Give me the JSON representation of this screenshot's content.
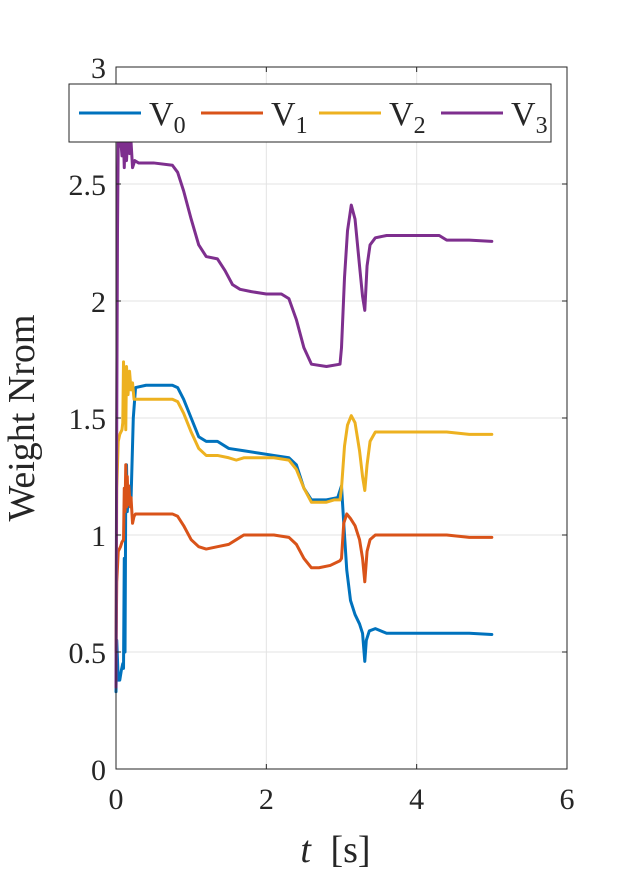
{
  "chart_data": {
    "type": "line",
    "title": "",
    "xlabel_var": "t",
    "xlabel_unit": "[s]",
    "ylabel": "Weight Nrom",
    "xlim": [
      0,
      6
    ],
    "ylim": [
      0,
      3
    ],
    "xticks": [
      0,
      2,
      4,
      6
    ],
    "xtick_labels": [
      "0",
      "2",
      "4",
      "6"
    ],
    "yticks": [
      0,
      0.5,
      1,
      1.5,
      2,
      2.5,
      3
    ],
    "ytick_labels": [
      "0",
      "0.5",
      "1",
      "1.5",
      "2",
      "2.5",
      "3"
    ],
    "grid": true,
    "legend_position": "top",
    "series": [
      {
        "name": "V",
        "sub": "0",
        "color": "#0072BD",
        "points": [
          [
            0,
            0.33
          ],
          [
            0.01,
            0.55
          ],
          [
            0.03,
            0.38
          ],
          [
            0.05,
            0.38
          ],
          [
            0.07,
            0.42
          ],
          [
            0.09,
            0.45
          ],
          [
            0.1,
            0.43
          ],
          [
            0.11,
            0.9
          ],
          [
            0.12,
            0.5
          ],
          [
            0.13,
            1.2
          ],
          [
            0.14,
            1.3
          ],
          [
            0.15,
            1.1
          ],
          [
            0.17,
            1.2
          ],
          [
            0.2,
            1.15
          ],
          [
            0.23,
            1.5
          ],
          [
            0.26,
            1.63
          ],
          [
            0.4,
            1.64
          ],
          [
            0.6,
            1.64
          ],
          [
            0.75,
            1.64
          ],
          [
            0.82,
            1.63
          ],
          [
            0.9,
            1.58
          ],
          [
            1.0,
            1.5
          ],
          [
            1.1,
            1.42
          ],
          [
            1.2,
            1.4
          ],
          [
            1.35,
            1.4
          ],
          [
            1.5,
            1.37
          ],
          [
            1.7,
            1.36
          ],
          [
            1.9,
            1.35
          ],
          [
            2.1,
            1.34
          ],
          [
            2.3,
            1.33
          ],
          [
            2.4,
            1.3
          ],
          [
            2.5,
            1.2
          ],
          [
            2.6,
            1.15
          ],
          [
            2.8,
            1.15
          ],
          [
            2.95,
            1.16
          ],
          [
            3.0,
            1.21
          ],
          [
            3.03,
            1.05
          ],
          [
            3.07,
            0.85
          ],
          [
            3.12,
            0.72
          ],
          [
            3.18,
            0.66
          ],
          [
            3.24,
            0.62
          ],
          [
            3.28,
            0.58
          ],
          [
            3.31,
            0.46
          ],
          [
            3.33,
            0.55
          ],
          [
            3.37,
            0.59
          ],
          [
            3.45,
            0.6
          ],
          [
            3.6,
            0.58
          ],
          [
            4.0,
            0.58
          ],
          [
            4.4,
            0.58
          ],
          [
            4.7,
            0.58
          ],
          [
            5.0,
            0.575
          ]
        ]
      },
      {
        "name": "V",
        "sub": "1",
        "color": "#D95319",
        "points": [
          [
            0,
            0.5
          ],
          [
            0.01,
            0.8
          ],
          [
            0.03,
            0.93
          ],
          [
            0.06,
            0.95
          ],
          [
            0.08,
            0.97
          ],
          [
            0.1,
            0.98
          ],
          [
            0.11,
            1.2
          ],
          [
            0.12,
            1.1
          ],
          [
            0.13,
            1.3
          ],
          [
            0.14,
            1.12
          ],
          [
            0.15,
            1.25
          ],
          [
            0.16,
            1.13
          ],
          [
            0.17,
            1.21
          ],
          [
            0.19,
            1.12
          ],
          [
            0.2,
            1.16
          ],
          [
            0.22,
            1.05
          ],
          [
            0.24,
            1.08
          ],
          [
            0.26,
            1.09
          ],
          [
            0.4,
            1.09
          ],
          [
            0.6,
            1.09
          ],
          [
            0.75,
            1.09
          ],
          [
            0.82,
            1.08
          ],
          [
            0.9,
            1.04
          ],
          [
            1.0,
            0.98
          ],
          [
            1.1,
            0.95
          ],
          [
            1.2,
            0.94
          ],
          [
            1.35,
            0.95
          ],
          [
            1.5,
            0.96
          ],
          [
            1.6,
            0.98
          ],
          [
            1.7,
            1.0
          ],
          [
            1.85,
            1.0
          ],
          [
            2.1,
            1.0
          ],
          [
            2.3,
            0.99
          ],
          [
            2.4,
            0.96
          ],
          [
            2.5,
            0.9
          ],
          [
            2.6,
            0.86
          ],
          [
            2.7,
            0.86
          ],
          [
            2.85,
            0.87
          ],
          [
            2.98,
            0.89
          ],
          [
            3.0,
            0.9
          ],
          [
            3.03,
            1.05
          ],
          [
            3.07,
            1.09
          ],
          [
            3.12,
            1.07
          ],
          [
            3.18,
            1.04
          ],
          [
            3.24,
            0.98
          ],
          [
            3.28,
            0.9
          ],
          [
            3.31,
            0.8
          ],
          [
            3.34,
            0.93
          ],
          [
            3.38,
            0.98
          ],
          [
            3.45,
            1.0
          ],
          [
            3.6,
            1.0
          ],
          [
            4.0,
            1.0
          ],
          [
            4.4,
            1.0
          ],
          [
            4.7,
            0.99
          ],
          [
            5.0,
            0.99
          ]
        ]
      },
      {
        "name": "V",
        "sub": "2",
        "color": "#EDB120",
        "points": [
          [
            0,
            0.5
          ],
          [
            0.01,
            1.2
          ],
          [
            0.03,
            1.4
          ],
          [
            0.05,
            1.43
          ],
          [
            0.08,
            1.45
          ],
          [
            0.09,
            1.48
          ],
          [
            0.1,
            1.74
          ],
          [
            0.11,
            1.5
          ],
          [
            0.12,
            1.62
          ],
          [
            0.13,
            1.45
          ],
          [
            0.14,
            1.72
          ],
          [
            0.16,
            1.6
          ],
          [
            0.18,
            1.7
          ],
          [
            0.2,
            1.62
          ],
          [
            0.22,
            1.65
          ],
          [
            0.24,
            1.58
          ],
          [
            0.3,
            1.58
          ],
          [
            0.5,
            1.58
          ],
          [
            0.75,
            1.58
          ],
          [
            0.82,
            1.57
          ],
          [
            0.9,
            1.52
          ],
          [
            1.0,
            1.44
          ],
          [
            1.1,
            1.37
          ],
          [
            1.2,
            1.34
          ],
          [
            1.35,
            1.34
          ],
          [
            1.5,
            1.33
          ],
          [
            1.6,
            1.32
          ],
          [
            1.7,
            1.33
          ],
          [
            1.9,
            1.33
          ],
          [
            2.1,
            1.33
          ],
          [
            2.3,
            1.32
          ],
          [
            2.4,
            1.28
          ],
          [
            2.5,
            1.2
          ],
          [
            2.6,
            1.14
          ],
          [
            2.8,
            1.14
          ],
          [
            2.9,
            1.15
          ],
          [
            2.98,
            1.15
          ],
          [
            3.0,
            1.2
          ],
          [
            3.04,
            1.38
          ],
          [
            3.08,
            1.47
          ],
          [
            3.13,
            1.51
          ],
          [
            3.18,
            1.48
          ],
          [
            3.24,
            1.36
          ],
          [
            3.28,
            1.25
          ],
          [
            3.31,
            1.19
          ],
          [
            3.34,
            1.3
          ],
          [
            3.38,
            1.4
          ],
          [
            3.45,
            1.44
          ],
          [
            3.6,
            1.44
          ],
          [
            4.0,
            1.44
          ],
          [
            4.4,
            1.44
          ],
          [
            4.7,
            1.43
          ],
          [
            5.0,
            1.43
          ]
        ]
      },
      {
        "name": "V",
        "sub": "3",
        "color": "#7E2F8E",
        "points": [
          [
            0,
            0.35
          ],
          [
            0.01,
            1.5
          ],
          [
            0.02,
            2.3
          ],
          [
            0.03,
            2.7
          ],
          [
            0.04,
            2.66
          ],
          [
            0.06,
            2.7
          ],
          [
            0.08,
            2.62
          ],
          [
            0.1,
            2.68
          ],
          [
            0.11,
            2.57
          ],
          [
            0.12,
            2.7
          ],
          [
            0.14,
            2.6
          ],
          [
            0.16,
            2.72
          ],
          [
            0.18,
            2.63
          ],
          [
            0.2,
            2.68
          ],
          [
            0.22,
            2.57
          ],
          [
            0.25,
            2.6
          ],
          [
            0.3,
            2.59
          ],
          [
            0.5,
            2.59
          ],
          [
            0.75,
            2.58
          ],
          [
            0.82,
            2.55
          ],
          [
            0.9,
            2.47
          ],
          [
            1.0,
            2.35
          ],
          [
            1.1,
            2.24
          ],
          [
            1.2,
            2.19
          ],
          [
            1.35,
            2.18
          ],
          [
            1.45,
            2.13
          ],
          [
            1.55,
            2.07
          ],
          [
            1.65,
            2.05
          ],
          [
            1.8,
            2.04
          ],
          [
            2.0,
            2.03
          ],
          [
            2.2,
            2.03
          ],
          [
            2.3,
            2.01
          ],
          [
            2.4,
            1.92
          ],
          [
            2.5,
            1.8
          ],
          [
            2.6,
            1.73
          ],
          [
            2.8,
            1.72
          ],
          [
            2.98,
            1.73
          ],
          [
            3.0,
            1.8
          ],
          [
            3.04,
            2.1
          ],
          [
            3.08,
            2.3
          ],
          [
            3.13,
            2.41
          ],
          [
            3.18,
            2.35
          ],
          [
            3.24,
            2.15
          ],
          [
            3.28,
            2.02
          ],
          [
            3.31,
            1.96
          ],
          [
            3.34,
            2.15
          ],
          [
            3.38,
            2.24
          ],
          [
            3.45,
            2.27
          ],
          [
            3.6,
            2.28
          ],
          [
            4.0,
            2.28
          ],
          [
            4.3,
            2.28
          ],
          [
            4.4,
            2.26
          ],
          [
            4.7,
            2.26
          ],
          [
            5.0,
            2.255
          ]
        ]
      }
    ]
  }
}
